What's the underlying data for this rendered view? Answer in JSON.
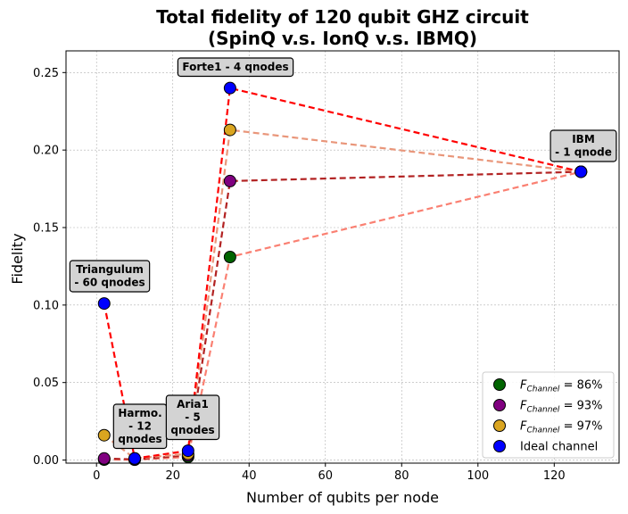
{
  "chart_data": {
    "type": "scatter",
    "title": "Total fidelity of 120 qubit GHZ circuit",
    "subtitle": "(SpinQ v.s. IonQ v.s. IBMQ)",
    "xlabel": "Number of qubits per node",
    "ylabel": "Fidelity",
    "xlim": [
      -8,
      137
    ],
    "ylim": [
      -0.002,
      0.264
    ],
    "xticks": [
      0,
      20,
      40,
      60,
      80,
      100,
      120
    ],
    "yticks": [
      0.0,
      0.05,
      0.1,
      0.15,
      0.2,
      0.25
    ],
    "ytick_labels": [
      "0.00",
      "0.05",
      "0.10",
      "0.15",
      "0.20",
      "0.25"
    ],
    "grid": true,
    "legend_position": "lower-right",
    "series": [
      {
        "name": "F_Channel = 86%",
        "legend_sub": "Channel",
        "legend_rest": " = 86%",
        "color": "#006400",
        "line_color": "#fa8072",
        "points": [
          [
            2,
            0.0003
          ],
          [
            10,
            0.0002
          ],
          [
            24,
            0.002
          ],
          [
            35,
            0.131
          ],
          [
            127,
            0.186
          ]
        ]
      },
      {
        "name": "F_Channel = 93%",
        "legend_sub": "Channel",
        "legend_rest": " = 93%",
        "color": "#800080",
        "line_color": "#b22222",
        "points": [
          [
            2,
            0.001
          ],
          [
            10,
            0.0004
          ],
          [
            24,
            0.003
          ],
          [
            35,
            0.18
          ],
          [
            127,
            0.186
          ]
        ]
      },
      {
        "name": "F_Channel = 97%",
        "legend_sub": "Channel",
        "legend_rest": " = 97%",
        "color": "#daa520",
        "line_color": "#e9967a",
        "points": [
          [
            2,
            0.016
          ],
          [
            10,
            0.001
          ],
          [
            24,
            0.004
          ],
          [
            35,
            0.213
          ],
          [
            127,
            0.186
          ]
        ]
      },
      {
        "name": "Ideal channel",
        "color": "#0000ff",
        "line_color": "#ff0000",
        "points": [
          [
            2,
            0.101
          ],
          [
            10,
            0.001
          ],
          [
            24,
            0.006
          ],
          [
            35,
            0.24
          ],
          [
            127,
            0.186
          ]
        ]
      }
    ],
    "annotations": [
      {
        "lines": [
          "Triangulum",
          "- 60 qnodes"
        ]
      },
      {
        "lines": [
          "Harmo.",
          "- 12",
          "qnodes"
        ]
      },
      {
        "lines": [
          "Aria1",
          "- 5",
          "qnodes"
        ]
      },
      {
        "lines": [
          "Forte1 - 4 qnodes"
        ]
      },
      {
        "lines": [
          "IBM",
          "- 1 qnode"
        ]
      }
    ]
  }
}
